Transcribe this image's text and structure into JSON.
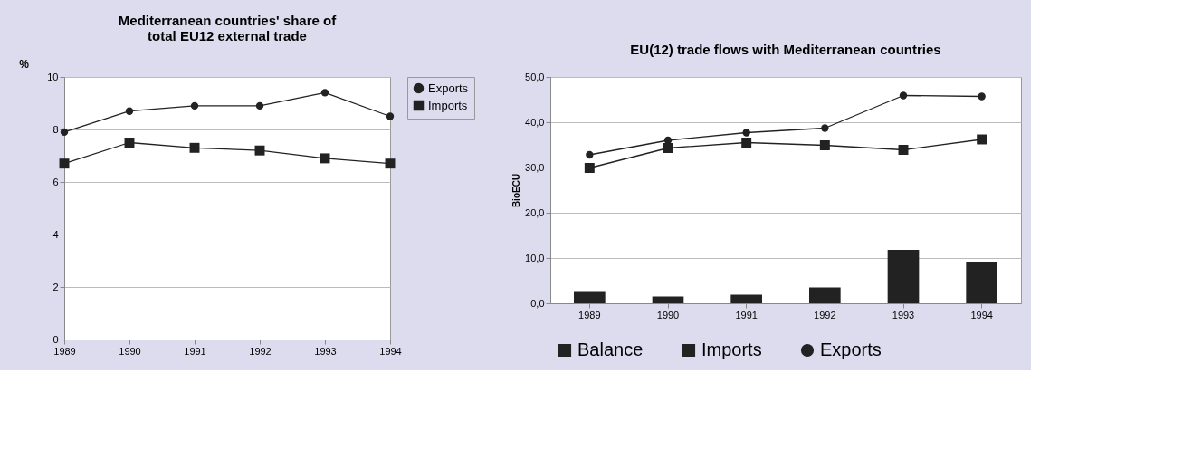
{
  "chart_data": [
    {
      "type": "line",
      "title": "Mediterranean countries' share of total EU12 external trade",
      "ylabel": "%",
      "categories": [
        "1989",
        "1990",
        "1991",
        "1992",
        "1993",
        "1994"
      ],
      "ylim": [
        0,
        10
      ],
      "yticks": [
        0,
        2,
        4,
        6,
        8,
        10
      ],
      "grid": "y",
      "legend": "right",
      "series": [
        {
          "name": "Exports",
          "color": "#222222",
          "marker": "circle",
          "values": [
            7.9,
            8.7,
            8.9,
            8.9,
            9.4,
            8.5
          ]
        },
        {
          "name": "Imports",
          "color": "#222222",
          "marker": "square",
          "values": [
            6.7,
            7.5,
            7.3,
            7.2,
            6.9,
            6.7
          ]
        }
      ]
    },
    {
      "type": "bar",
      "title": "EU(12) trade flows with Mediterranean countries",
      "ylabel": "BioECU",
      "categories": [
        "1989",
        "1990",
        "1991",
        "1992",
        "1993",
        "1994"
      ],
      "ylim": [
        0,
        50
      ],
      "yticks": [
        {
          "value": 0,
          "label": "0,0"
        },
        {
          "value": 10,
          "label": "10,0"
        },
        {
          "value": 20,
          "label": "20,0"
        },
        {
          "value": 30,
          "label": "30,0"
        },
        {
          "value": 40,
          "label": "40,0"
        },
        {
          "value": 50,
          "label": "50,0"
        }
      ],
      "grid": "y",
      "legend": "bottom",
      "series": [
        {
          "name": "Balance",
          "type": "bar",
          "color": "#222222",
          "values": [
            2.7,
            1.5,
            1.9,
            3.5,
            11.8,
            9.2
          ]
        },
        {
          "name": "Imports",
          "type": "line",
          "color": "#222222",
          "marker": "square",
          "values": [
            29.9,
            34.3,
            35.5,
            34.9,
            33.9,
            36.2
          ]
        },
        {
          "name": "Exports",
          "type": "line",
          "color": "#222222",
          "marker": "circle",
          "values": [
            32.8,
            36.0,
            37.7,
            38.7,
            45.9,
            45.7
          ]
        }
      ]
    }
  ]
}
